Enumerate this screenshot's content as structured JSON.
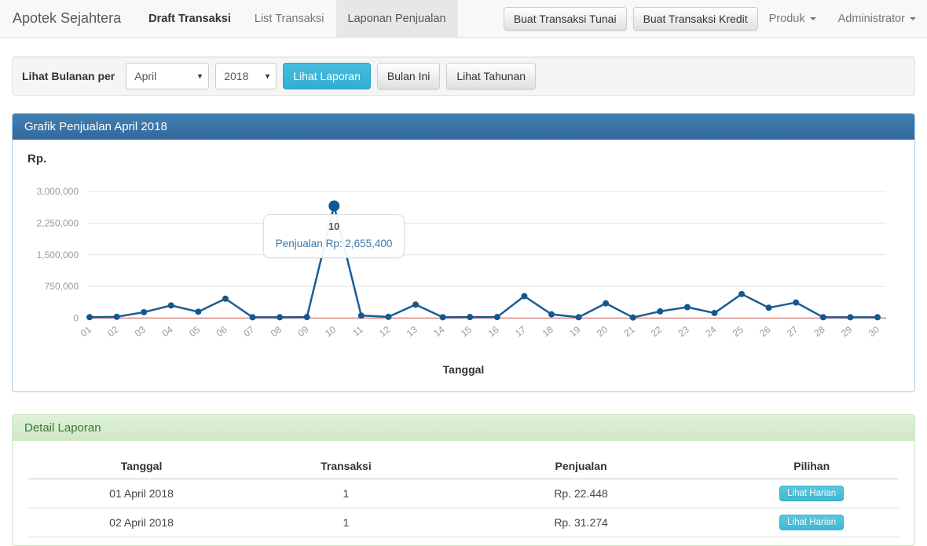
{
  "navbar": {
    "brand": "Apotek Sejahtera",
    "items": [
      {
        "label": "Draft Transaksi"
      },
      {
        "label": "List Transaksi"
      },
      {
        "label": "Laponan Penjualan"
      }
    ],
    "buttons": [
      "Buat Transaksi Tunai",
      "Buat Transaksi Kredit"
    ],
    "dropdowns": [
      "Produk",
      "Administrator"
    ]
  },
  "filter": {
    "label": "Lihat Bulanan per",
    "month": "April",
    "year": "2018",
    "view_report_label": "Lihat Laporan",
    "this_month_label": "Bulan Ini",
    "yearly_label": "Lihat Tahunan"
  },
  "chart_panel": {
    "title": "Grafik Penjualan April 2018"
  },
  "chart_data": {
    "type": "line",
    "title": "Grafik Penjualan April 2018",
    "ylabel": "Rp.",
    "xlabel": "Tanggal",
    "x": [
      "01",
      "02",
      "03",
      "04",
      "05",
      "06",
      "07",
      "08",
      "09",
      "10",
      "11",
      "12",
      "13",
      "14",
      "15",
      "16",
      "17",
      "18",
      "19",
      "20",
      "21",
      "22",
      "23",
      "24",
      "25",
      "26",
      "27",
      "28",
      "29",
      "30"
    ],
    "series": [
      {
        "name": "Penjualan",
        "color": "#1d5c94",
        "values": [
          22448,
          31274,
          140000,
          300000,
          150000,
          460000,
          20000,
          20000,
          25000,
          2655400,
          60000,
          30000,
          320000,
          20000,
          25000,
          25000,
          520000,
          90000,
          20000,
          350000,
          15000,
          160000,
          260000,
          120000,
          570000,
          245000,
          370000,
          20000,
          20000,
          20000
        ]
      }
    ],
    "yticks": [
      0,
      750000,
      1500000,
      2250000,
      3000000
    ],
    "ylim": [
      0,
      3000000
    ],
    "grid": true,
    "baseline": {
      "value": 0,
      "color": "#d9837a"
    },
    "highlight": {
      "x": "10",
      "label": "10",
      "text": "Penjualan Rp: 2,655,400",
      "value": 2655400
    }
  },
  "detail": {
    "title": "Detail Laporan",
    "table": {
      "headers": [
        "Tanggal",
        "Transaksi",
        "Penjualan",
        "Pilihan"
      ],
      "rows": [
        {
          "tanggal": "01 April 2018",
          "transaksi": "1",
          "penjualan": "Rp. 22.448",
          "action": "Lihat Harian"
        },
        {
          "tanggal": "02 April 2018",
          "transaksi": "1",
          "penjualan": "Rp. 31.274",
          "action": "Lihat Harian"
        }
      ]
    }
  },
  "colors": {
    "chart_header": "#33689c",
    "detail_header_bg": "#d5ecca",
    "detail_header_text": "#3c763d",
    "accent_cyan": "#31aed2",
    "line": "#1d5c94",
    "baseline_red": "#d9837a",
    "active_tab_bg": "#e7e7e7"
  }
}
